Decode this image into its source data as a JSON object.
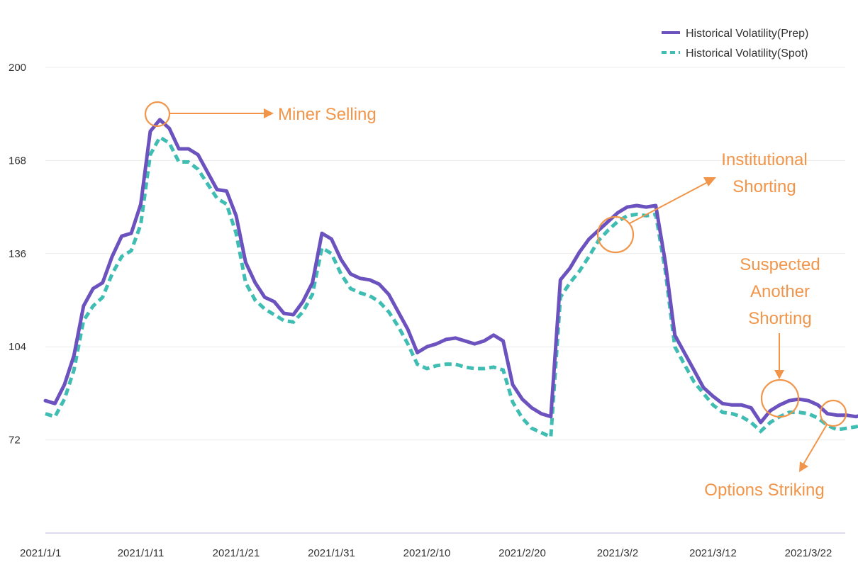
{
  "chart_data": {
    "type": "line",
    "title": "",
    "xlabel": "",
    "ylabel": "",
    "ylim": [
      40,
      200
    ],
    "yticks": [
      72,
      104,
      136,
      168,
      200
    ],
    "x_start": "2021/1/1",
    "xticks": [
      "2021/1/1",
      "2021/1/11",
      "2021/1/21",
      "2021/1/31",
      "2021/2/10",
      "2021/2/20",
      "2021/3/2",
      "2021/3/12",
      "2021/3/22"
    ],
    "grid": true,
    "legend_position": "top-right",
    "colors": {
      "prep": "#6B52BE",
      "spot": "#3FBDB3",
      "annotation": "#F0954A"
    },
    "series": [
      {
        "name": "Historical Volatility(Prep)",
        "style": "solid",
        "values": [
          85.5,
          84.5,
          91,
          101,
          118,
          124,
          126,
          135,
          142,
          143,
          153,
          178,
          182,
          179,
          172,
          172,
          170,
          164,
          158,
          157.5,
          149,
          133,
          126,
          121,
          119.5,
          115.5,
          115,
          119.5,
          126,
          143,
          141,
          134,
          129,
          127.5,
          127,
          125.5,
          122,
          116,
          110,
          102,
          104,
          105,
          106.5,
          107,
          106,
          105,
          106,
          108,
          106,
          91,
          86,
          83,
          81,
          80,
          127,
          131,
          136.5,
          141,
          144,
          147,
          150,
          152,
          152.5,
          152,
          152.5,
          133,
          108,
          102,
          96,
          90,
          87,
          84.5,
          84,
          84,
          83,
          78,
          82,
          84,
          85.5,
          86,
          85.5,
          84,
          81,
          80.5,
          80.5,
          80,
          81,
          79
        ]
      },
      {
        "name": "Historical Volatility(Spot)",
        "style": "dashed",
        "values": [
          81,
          80,
          86,
          96,
          113,
          118,
          121,
          129,
          135,
          137,
          146,
          170,
          176,
          174,
          167.5,
          167.5,
          165,
          160,
          155,
          153,
          143,
          126,
          120,
          117,
          115,
          113,
          112.5,
          116,
          122,
          138,
          136,
          129,
          124,
          122.5,
          121.5,
          119.5,
          116,
          111,
          105,
          98,
          96.5,
          97.5,
          98,
          98,
          97,
          96.5,
          96.5,
          97,
          96,
          85,
          79.5,
          76,
          74.5,
          73,
          121,
          126,
          130,
          135,
          140.5,
          144,
          147,
          149,
          149.5,
          149,
          149.5,
          130,
          104,
          98,
          92,
          88,
          84,
          81.5,
          81,
          80,
          78,
          75,
          78,
          80,
          81.5,
          81.5,
          81,
          79.5,
          77,
          75.5,
          76,
          76.5,
          77.5,
          78.5
        ]
      }
    ],
    "annotations": [
      {
        "label": "Miner Selling"
      },
      {
        "label_lines": [
          "Institutional",
          "Shorting"
        ]
      },
      {
        "label_lines": [
          "Suspected",
          "Another",
          "Shorting"
        ]
      },
      {
        "label": "Options Striking"
      }
    ]
  }
}
